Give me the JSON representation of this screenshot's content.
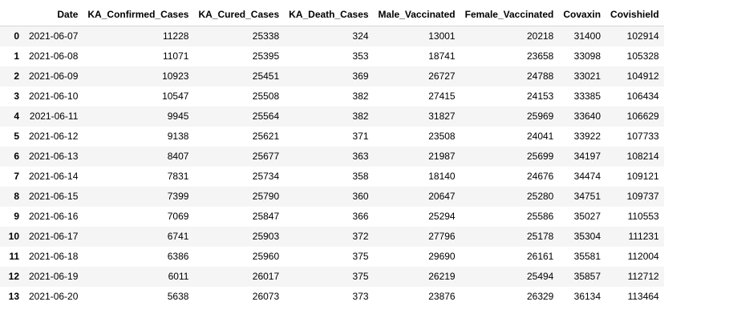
{
  "table": {
    "columns": [
      "",
      "Date",
      "KA_Confirmed_Cases",
      "KA_Cured_Cases",
      "KA_Death_Cases",
      "Male_Vaccinated",
      "Female_Vaccinated",
      "Covaxin",
      "Covishield"
    ],
    "rows": [
      {
        "index": "0",
        "cells": [
          "2021-06-07",
          "11228",
          "25338",
          "324",
          "13001",
          "20218",
          "31400",
          "102914"
        ]
      },
      {
        "index": "1",
        "cells": [
          "2021-06-08",
          "11071",
          "25395",
          "353",
          "18741",
          "23658",
          "33098",
          "105328"
        ]
      },
      {
        "index": "2",
        "cells": [
          "2021-06-09",
          "10923",
          "25451",
          "369",
          "26727",
          "24788",
          "33021",
          "104912"
        ]
      },
      {
        "index": "3",
        "cells": [
          "2021-06-10",
          "10547",
          "25508",
          "382",
          "27415",
          "24153",
          "33385",
          "106434"
        ]
      },
      {
        "index": "4",
        "cells": [
          "2021-06-11",
          "9945",
          "25564",
          "382",
          "31827",
          "25969",
          "33640",
          "106629"
        ]
      },
      {
        "index": "5",
        "cells": [
          "2021-06-12",
          "9138",
          "25621",
          "371",
          "23508",
          "24041",
          "33922",
          "107733"
        ]
      },
      {
        "index": "6",
        "cells": [
          "2021-06-13",
          "8407",
          "25677",
          "363",
          "21987",
          "25699",
          "34197",
          "108214"
        ]
      },
      {
        "index": "7",
        "cells": [
          "2021-06-14",
          "7831",
          "25734",
          "358",
          "18140",
          "24676",
          "34474",
          "109121"
        ]
      },
      {
        "index": "8",
        "cells": [
          "2021-06-15",
          "7399",
          "25790",
          "360",
          "20647",
          "25280",
          "34751",
          "109737"
        ]
      },
      {
        "index": "9",
        "cells": [
          "2021-06-16",
          "7069",
          "25847",
          "366",
          "25294",
          "25586",
          "35027",
          "110553"
        ]
      },
      {
        "index": "10",
        "cells": [
          "2021-06-17",
          "6741",
          "25903",
          "372",
          "27796",
          "25178",
          "35304",
          "111231"
        ]
      },
      {
        "index": "11",
        "cells": [
          "2021-06-18",
          "6386",
          "25960",
          "375",
          "29690",
          "26161",
          "35581",
          "112004"
        ]
      },
      {
        "index": "12",
        "cells": [
          "2021-06-19",
          "6011",
          "26017",
          "375",
          "26219",
          "25494",
          "35857",
          "112712"
        ]
      },
      {
        "index": "13",
        "cells": [
          "2021-06-20",
          "5638",
          "26073",
          "373",
          "23876",
          "26329",
          "36134",
          "113464"
        ]
      }
    ]
  }
}
